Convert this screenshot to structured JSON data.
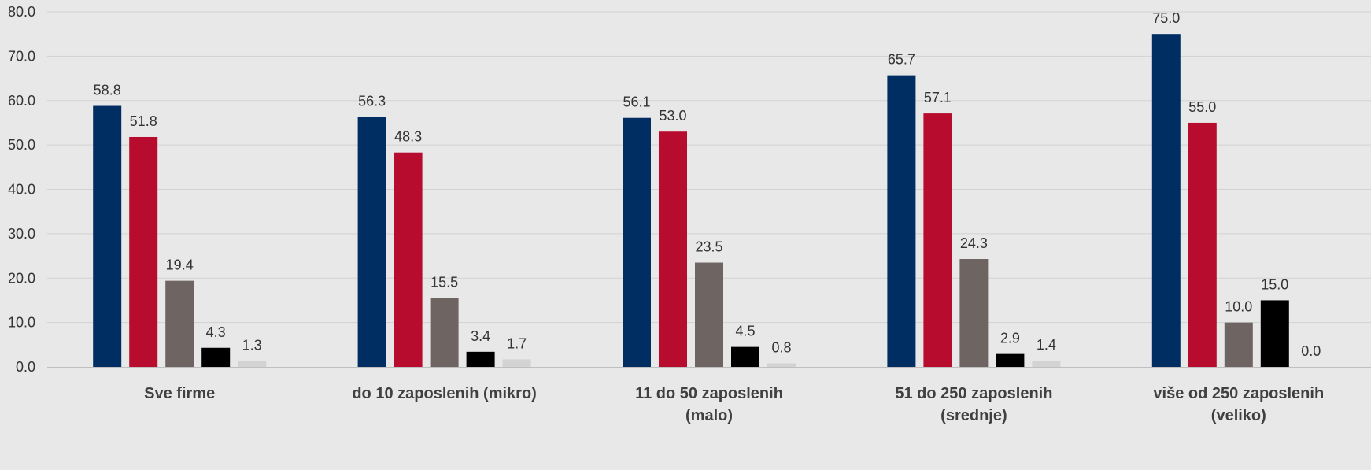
{
  "chart_data": {
    "type": "bar",
    "categories": [
      [
        "Sve firme"
      ],
      [
        "do 10 zaposlenih (mikro)"
      ],
      [
        "11 do 50 zaposlenih",
        "(malo)"
      ],
      [
        "51 do 250 zaposlenih",
        "(srednje)"
      ],
      [
        "više od 250 zaposlenih",
        "(veliko)"
      ]
    ],
    "series": [
      {
        "color": "#002d62",
        "values": [
          58.8,
          56.3,
          56.1,
          65.7,
          75.0
        ]
      },
      {
        "color": "#b80c2f",
        "values": [
          51.8,
          48.3,
          53.0,
          57.1,
          55.0
        ]
      },
      {
        "color": "#6e6562",
        "values": [
          19.4,
          15.5,
          23.5,
          24.3,
          10.0
        ]
      },
      {
        "color": "#000000",
        "values": [
          4.3,
          3.4,
          4.5,
          2.9,
          15.0
        ]
      },
      {
        "color": "#d3d3d3",
        "values": [
          1.3,
          1.7,
          0.8,
          1.4,
          0.0
        ]
      }
    ],
    "ylim": [
      0,
      80
    ],
    "yticks": [
      "0.0",
      "10.0",
      "20.0",
      "30.0",
      "40.0",
      "50.0",
      "60.0",
      "70.0",
      "80.0"
    ],
    "title": "",
    "xlabel": "",
    "ylabel": "",
    "grid": true,
    "legend": "none",
    "value_labels": true,
    "value_format": "1 decimal"
  }
}
